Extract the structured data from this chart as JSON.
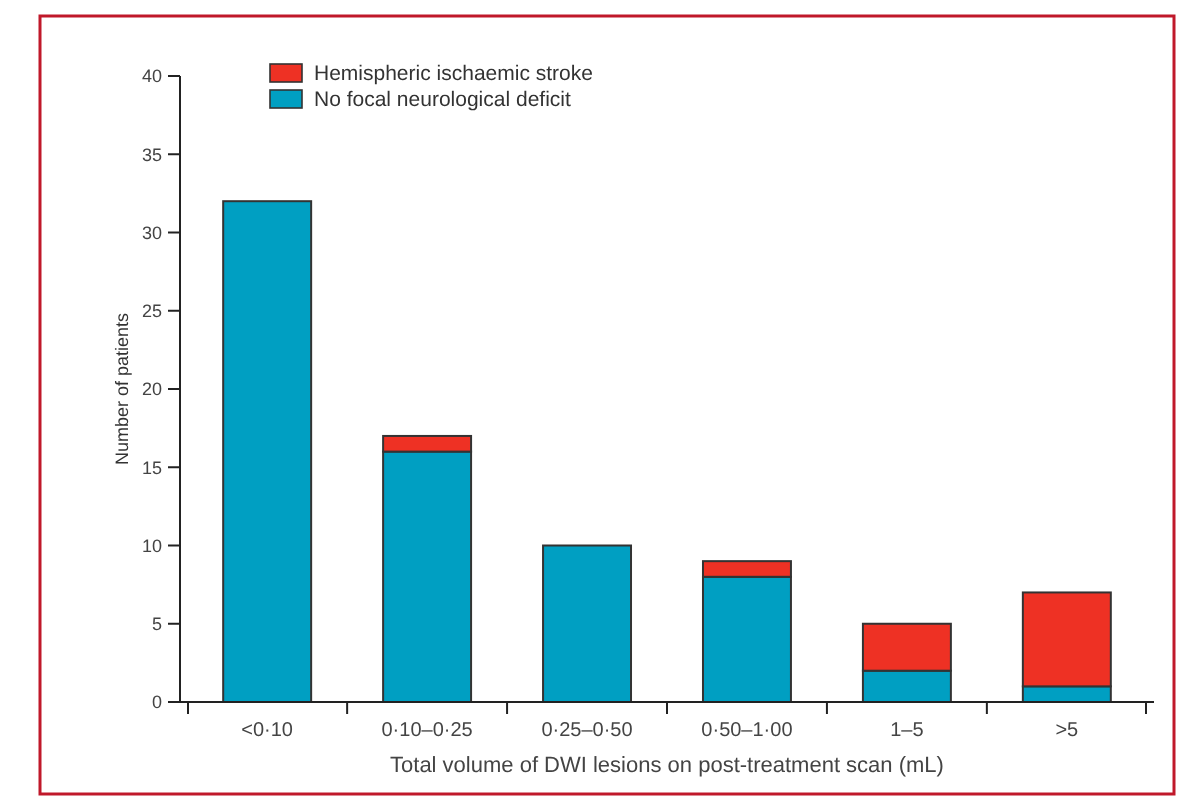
{
  "chart_data": {
    "type": "bar",
    "stacked": true,
    "xlabel": "Total volume of DWI lesions on post-treatment scan (mL)",
    "ylabel": "Number of patients",
    "categories": [
      "<0·10",
      "0·10–0·25",
      "0·25–0·50",
      "0·50–1·00",
      "1–5",
      ">5"
    ],
    "series": [
      {
        "name": "No focal neurological deficit",
        "color": "#009fc2",
        "values": [
          32,
          16,
          10,
          8,
          2,
          1
        ]
      },
      {
        "name": "Hemispheric ischaemic stroke",
        "color": "#ee3124",
        "values": [
          0,
          1,
          0,
          1,
          3,
          6
        ]
      }
    ],
    "ylim": [
      0,
      40
    ],
    "yticks": [
      0,
      5,
      10,
      15,
      20,
      25,
      30,
      35,
      40
    ],
    "legend": "top left",
    "grid": false
  }
}
